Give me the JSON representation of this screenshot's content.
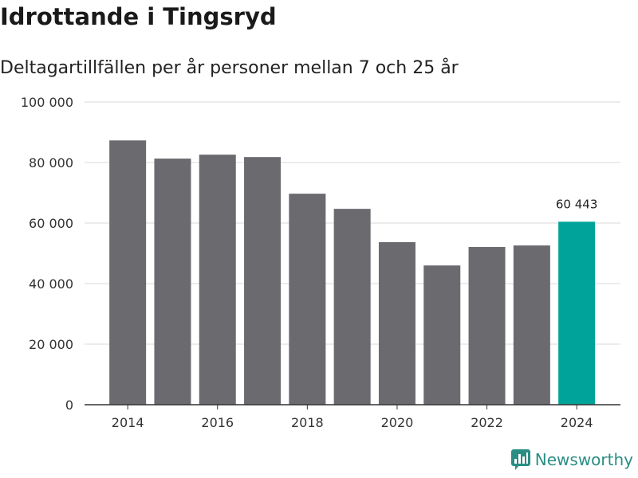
{
  "title": "Idrottande i Tingsryd",
  "subtitle": "Deltagartillfällen per år personer mellan 7 och 25 år",
  "brand": {
    "name": "Newsworthy",
    "icon": "newsworthy-logo-icon",
    "color": "#2a8e84"
  },
  "colors": {
    "bar": "#6b6a6f",
    "highlight": "#00a39a",
    "grid": "#d9d9d9",
    "axis": "#333333"
  },
  "chart_data": {
    "type": "bar",
    "categories": [
      "2014",
      "2015",
      "2016",
      "2017",
      "2018",
      "2019",
      "2020",
      "2021",
      "2022",
      "2023",
      "2024"
    ],
    "values": [
      87300,
      81300,
      82600,
      81800,
      69700,
      64700,
      53700,
      46000,
      52100,
      52600,
      60443
    ],
    "highlight_index": 10,
    "data_labels": [
      {
        "index": 10,
        "text": "60 443"
      }
    ],
    "x_tick_labels": [
      "2014",
      "2016",
      "2018",
      "2020",
      "2022",
      "2024"
    ],
    "y_ticks": [
      0,
      20000,
      40000,
      60000,
      80000,
      100000
    ],
    "y_tick_labels": [
      "0",
      "20 000",
      "40 000",
      "60 000",
      "80 000",
      "100 000"
    ],
    "ylim": [
      0,
      100000
    ],
    "grid": true
  }
}
